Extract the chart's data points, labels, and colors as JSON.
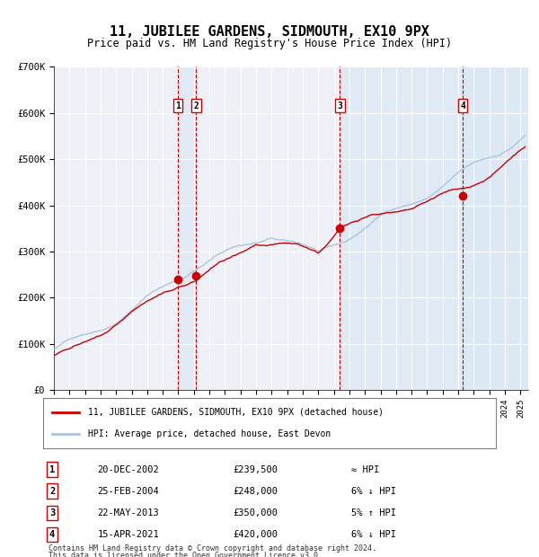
{
  "title": "11, JUBILEE GARDENS, SIDMOUTH, EX10 9PX",
  "subtitle": "Price paid vs. HM Land Registry's House Price Index (HPI)",
  "ylabel": "",
  "background_color": "#ffffff",
  "plot_bg_color": "#eef2f8",
  "grid_color": "#ffffff",
  "hpi_line_color": "#aac4e0",
  "price_line_color": "#cc0000",
  "sale_dot_color": "#cc0000",
  "vline_color_red": "#cc0000",
  "vline_color_blue": "#7799bb",
  "shade_color": "#dce8f5",
  "transactions": [
    {
      "num": 1,
      "date_label": "20-DEC-2002",
      "x_year": 2002.97,
      "price": 239500,
      "relation": "≈ HPI"
    },
    {
      "num": 2,
      "date_label": "25-FEB-2004",
      "x_year": 2004.15,
      "price": 248000,
      "relation": "6% ↓ HPI"
    },
    {
      "num": 3,
      "date_label": "22-MAY-2013",
      "x_year": 2013.39,
      "price": 350000,
      "relation": "5% ↑ HPI"
    },
    {
      "num": 4,
      "date_label": "15-APR-2021",
      "x_year": 2021.29,
      "price": 420000,
      "relation": "6% ↓ HPI"
    }
  ],
  "legend_line1": "11, JUBILEE GARDENS, SIDMOUTH, EX10 9PX (detached house)",
  "legend_line2": "HPI: Average price, detached house, East Devon",
  "footer1": "Contains HM Land Registry data © Crown copyright and database right 2024.",
  "footer2": "This data is licensed under the Open Government Licence v3.0.",
  "xmin": 1995,
  "xmax": 2025.5,
  "ymin": 0,
  "ymax": 700000,
  "yticks": [
    0,
    100000,
    200000,
    300000,
    400000,
    500000,
    600000,
    700000
  ],
  "ytick_labels": [
    "£0",
    "£100K",
    "£200K",
    "£300K",
    "£400K",
    "£500K",
    "£600K",
    "£700K"
  ]
}
